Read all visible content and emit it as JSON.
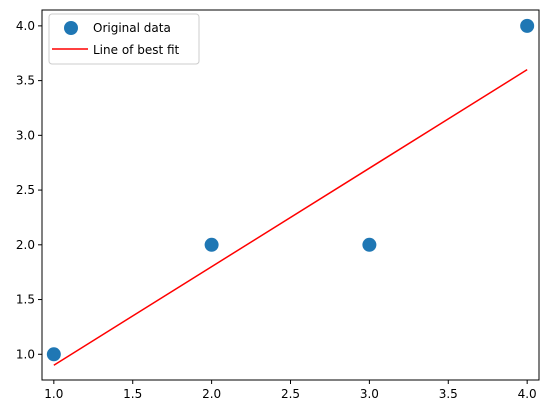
{
  "chart_data": {
    "type": "scatter",
    "title": "",
    "xlabel": "",
    "ylabel": "",
    "xlim": [
      0.925,
      4.075
    ],
    "ylim": [
      0.765,
      4.145
    ],
    "xticks": [
      1.0,
      1.5,
      2.0,
      2.5,
      3.0,
      3.5,
      4.0
    ],
    "xtick_labels": [
      "1.0",
      "1.5",
      "2.0",
      "2.5",
      "3.0",
      "3.5",
      "4.0"
    ],
    "yticks": [
      1.0,
      1.5,
      2.0,
      2.5,
      3.0,
      3.5,
      4.0
    ],
    "ytick_labels": [
      "1.0",
      "1.5",
      "2.0",
      "2.5",
      "3.0",
      "3.5",
      "4.0"
    ],
    "grid": false,
    "legend_position": "top-left",
    "series": [
      {
        "name": "Original data",
        "kind": "scatter",
        "color": "#1f77b4",
        "x": [
          1,
          2,
          3,
          4
        ],
        "y": [
          1,
          2,
          2,
          4
        ]
      },
      {
        "name": "Line of best fit",
        "kind": "line",
        "color": "#ff0000",
        "x": [
          1,
          4
        ],
        "y": [
          0.9,
          3.6
        ]
      }
    ]
  }
}
